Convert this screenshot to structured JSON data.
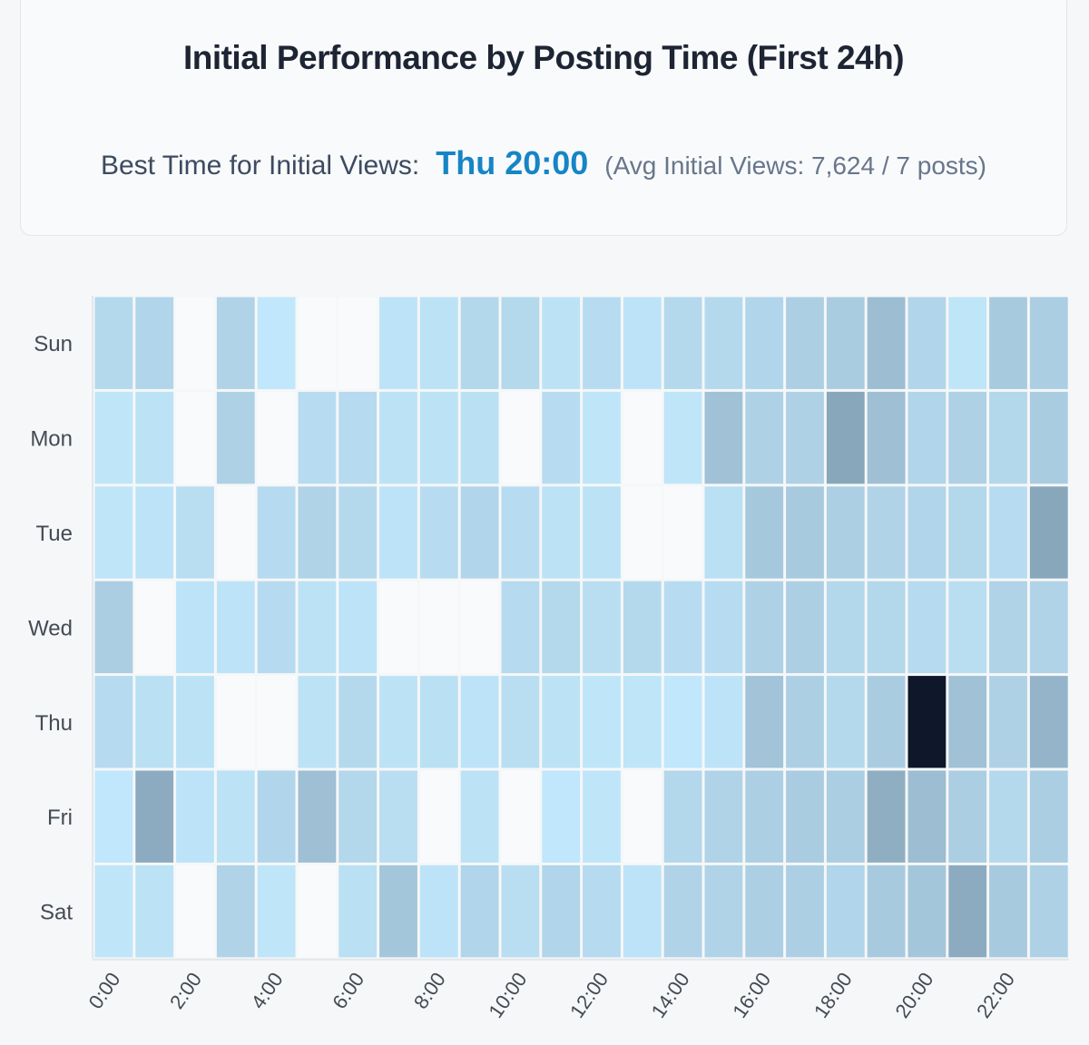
{
  "header": {
    "title": "Initial Performance by Posting Time (First 24h)",
    "best_label": "Best Time for Initial Views:",
    "best_value": "Thu 20:00",
    "best_sub": "(Avg Initial Views: 7,624 / 7 posts)"
  },
  "colors": {
    "scale_low": "#f8fafc",
    "scale_mid_light": "#c0e7fb",
    "scale_mid": "#a8cadf",
    "scale_high": "#89a7bb",
    "scale_max": "#0f172a",
    "accent": "#1685c6"
  },
  "chart_data": {
    "type": "heatmap",
    "title": "Initial Performance by Posting Time (First 24h)",
    "rows": [
      "Sun",
      "Mon",
      "Tue",
      "Wed",
      "Thu",
      "Fri",
      "Sat"
    ],
    "columns": [
      "0:00",
      "1:00",
      "2:00",
      "3:00",
      "4:00",
      "5:00",
      "6:00",
      "7:00",
      "8:00",
      "9:00",
      "10:00",
      "11:00",
      "12:00",
      "13:00",
      "14:00",
      "15:00",
      "16:00",
      "17:00",
      "18:00",
      "19:00",
      "20:00",
      "21:00",
      "22:00",
      "23:00"
    ],
    "x_tick_labels": [
      "0:00",
      "2:00",
      "4:00",
      "6:00",
      "8:00",
      "10:00",
      "12:00",
      "14:00",
      "16:00",
      "18:00",
      "20:00",
      "22:00"
    ],
    "value_max": 7624,
    "values": [
      [
        1700,
        1800,
        0,
        1850,
        1300,
        0,
        0,
        1400,
        1450,
        1750,
        1700,
        1450,
        1600,
        1400,
        1700,
        1700,
        1800,
        1950,
        2050,
        2400,
        1800,
        1350,
        2100,
        2000
      ],
      [
        1350,
        1450,
        0,
        1900,
        0,
        1600,
        1650,
        1450,
        1450,
        1500,
        0,
        1600,
        1350,
        0,
        1350,
        2300,
        1900,
        1900,
        2900,
        2350,
        1800,
        1900,
        1750,
        2050
      ],
      [
        1350,
        1400,
        1550,
        0,
        1650,
        1850,
        1700,
        1400,
        1600,
        1800,
        1600,
        1450,
        1450,
        0,
        0,
        1500,
        2150,
        2100,
        1950,
        1850,
        1800,
        1750,
        1600,
        2900
      ],
      [
        2000,
        0,
        1400,
        1400,
        1650,
        1450,
        1400,
        0,
        0,
        0,
        1650,
        1700,
        1550,
        1700,
        1600,
        1600,
        1900,
        1950,
        1750,
        1750,
        1650,
        1550,
        1850,
        1850
      ],
      [
        1650,
        1500,
        1450,
        0,
        0,
        1450,
        1700,
        1450,
        1500,
        1400,
        1550,
        1450,
        1350,
        1350,
        1300,
        1400,
        2250,
        1950,
        1700,
        2050,
        7624,
        2300,
        1900,
        2600
      ],
      [
        1300,
        2800,
        1400,
        1450,
        1800,
        2350,
        1750,
        1550,
        0,
        1450,
        0,
        1300,
        1350,
        0,
        1750,
        1850,
        1950,
        2050,
        2000,
        2750,
        2400,
        2000,
        1700,
        2000
      ],
      [
        1350,
        1450,
        0,
        1850,
        1350,
        0,
        1500,
        2200,
        1400,
        1800,
        1550,
        1800,
        1650,
        1400,
        1850,
        1850,
        1950,
        1950,
        1800,
        2100,
        2200,
        2800,
        2100,
        1900
      ]
    ]
  }
}
